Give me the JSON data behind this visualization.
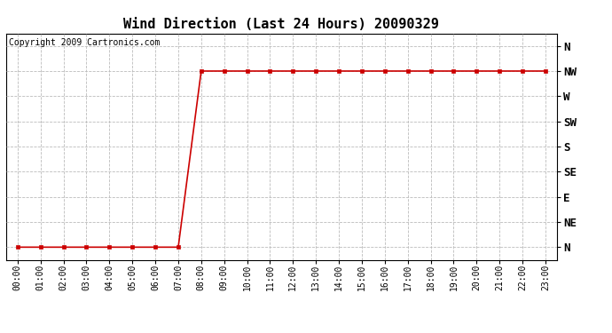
{
  "title": "Wind Direction (Last 24 Hours) 20090329",
  "copyright_text": "Copyright 2009 Cartronics.com",
  "ytick_labels": [
    "N",
    "NE",
    "E",
    "SE",
    "S",
    "SW",
    "W",
    "NW",
    "N"
  ],
  "ytick_values": [
    0,
    1,
    2,
    3,
    4,
    5,
    6,
    7,
    8
  ],
  "xtick_labels": [
    "00:00",
    "01:00",
    "02:00",
    "03:00",
    "04:00",
    "05:00",
    "06:00",
    "07:00",
    "08:00",
    "09:00",
    "10:00",
    "11:00",
    "12:00",
    "13:00",
    "14:00",
    "15:00",
    "16:00",
    "17:00",
    "18:00",
    "19:00",
    "20:00",
    "21:00",
    "22:00",
    "23:00"
  ],
  "x_values": [
    0,
    1,
    2,
    3,
    4,
    5,
    6,
    7,
    8,
    9,
    10,
    11,
    12,
    13,
    14,
    15,
    16,
    17,
    18,
    19,
    20,
    21,
    22,
    23
  ],
  "y_values": [
    0,
    0,
    0,
    0,
    0,
    0,
    0,
    0,
    7,
    7,
    7,
    7,
    7,
    7,
    7,
    7,
    7,
    7,
    7,
    7,
    7,
    7,
    7,
    7
  ],
  "line_color": "#cc0000",
  "marker": "s",
  "marker_size": 2.5,
  "line_width": 1.2,
  "grid_color": "#bbbbbb",
  "grid_linestyle": "--",
  "background_color": "#ffffff",
  "plot_bg_color": "#ffffff",
  "title_fontsize": 11,
  "copyright_fontsize": 7,
  "tick_fontsize": 7,
  "ytick_fontsize": 9,
  "ylim": [
    -0.5,
    8.5
  ],
  "xlim": [
    -0.5,
    23.5
  ]
}
